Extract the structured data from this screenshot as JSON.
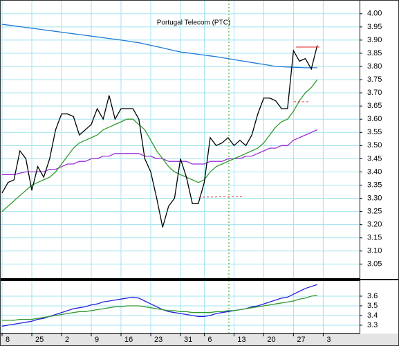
{
  "chart_data": [
    {
      "type": "line",
      "title": "Portugal Telecom (PTC)",
      "ylim": [
        2.997,
        4.052
      ],
      "yticks": [
        3.05,
        {
          "value": 3.1,
          "label": "3.10"
        },
        3.15,
        {
          "value": 3.2,
          "label": "3.20"
        },
        3.25,
        {
          "value": 3.3,
          "label": "3.30"
        },
        3.35,
        {
          "value": 3.4,
          "label": "3.40"
        },
        3.45,
        {
          "value": 3.5,
          "label": "3.50"
        },
        3.55,
        {
          "value": 3.6,
          "label": "3.60"
        },
        3.65,
        {
          "value": 3.7,
          "label": "3.70"
        },
        3.75,
        {
          "value": 3.8,
          "label": "3.80"
        },
        3.85,
        {
          "value": 3.9,
          "label": "3.90"
        },
        3.95,
        {
          "value": 4,
          "label": "4.00"
        }
      ],
      "grid": true,
      "series": [
        {
          "color": "#1c7ad8",
          "values": [
            3.96,
            3.957,
            3.954,
            3.951,
            3.948,
            3.945,
            3.942,
            3.939,
            3.936,
            3.933,
            3.93,
            3.927,
            3.924,
            3.921,
            3.918,
            3.915,
            3.912,
            3.909,
            3.906,
            3.903,
            3.9,
            3.897,
            3.893,
            3.89,
            3.885,
            3.88,
            3.875,
            3.87,
            3.865,
            3.86,
            3.855,
            3.852,
            3.849,
            3.846,
            3.843,
            3.84,
            3.837,
            3.833,
            3.83,
            3.826,
            3.822,
            3.819,
            3.815,
            3.811,
            3.808,
            3.804,
            3.8,
            3.799,
            3.798,
            3.797,
            3.796,
            3.795,
            3.795,
            3.795,
            null
          ]
        },
        {
          "color": "#9b2fd8",
          "values": [
            3.39,
            3.39,
            3.39,
            3.395,
            3.4,
            3.4,
            3.4,
            3.4,
            3.41,
            3.41,
            3.42,
            3.43,
            3.43,
            3.44,
            3.44,
            3.45,
            3.45,
            3.46,
            3.46,
            3.47,
            3.47,
            3.47,
            3.47,
            3.47,
            3.46,
            3.46,
            3.45,
            3.45,
            3.44,
            3.44,
            3.44,
            3.44,
            3.43,
            3.43,
            3.43,
            3.44,
            3.44,
            3.44,
            3.45,
            3.45,
            3.45,
            3.46,
            3.46,
            3.47,
            3.48,
            3.49,
            3.49,
            3.5,
            3.5,
            3.52,
            3.53,
            3.54,
            3.55,
            3.56,
            null
          ]
        },
        {
          "color": "#2e9a2e",
          "values": [
            3.25,
            3.27,
            3.29,
            3.31,
            3.33,
            3.35,
            3.36,
            3.37,
            3.38,
            3.4,
            3.43,
            3.46,
            3.49,
            3.51,
            3.52,
            3.53,
            3.54,
            3.56,
            3.57,
            3.58,
            3.59,
            3.6,
            3.6,
            3.58,
            3.56,
            3.52,
            3.48,
            3.45,
            3.42,
            3.4,
            3.39,
            3.38,
            3.37,
            3.36,
            3.37,
            3.4,
            3.42,
            3.43,
            3.44,
            3.45,
            3.46,
            3.47,
            3.48,
            3.49,
            3.51,
            3.54,
            3.57,
            3.59,
            3.6,
            3.63,
            3.67,
            3.7,
            3.72,
            3.75,
            null
          ]
        },
        {
          "color": "#000000",
          "values": [
            3.32,
            3.36,
            3.37,
            3.48,
            3.45,
            3.33,
            3.42,
            3.38,
            3.45,
            3.56,
            3.62,
            3.62,
            3.61,
            3.54,
            3.56,
            3.58,
            3.64,
            3.6,
            3.69,
            3.6,
            3.64,
            3.64,
            3.64,
            3.6,
            3.45,
            3.4,
            3.3,
            3.19,
            3.27,
            3.3,
            3.45,
            3.38,
            3.28,
            3.28,
            3.36,
            3.53,
            3.5,
            3.51,
            3.53,
            3.5,
            3.52,
            3.5,
            3.54,
            3.62,
            3.68,
            3.68,
            3.67,
            3.64,
            3.64,
            3.86,
            3.82,
            3.83,
            3.79,
            3.88,
            null
          ]
        }
      ]
    },
    {
      "type": "line",
      "categories": [
        "8",
        null,
        null,
        null,
        null,
        "25",
        null,
        null,
        null,
        null,
        "2",
        null,
        null,
        null,
        null,
        "9",
        null,
        null,
        null,
        null,
        "16",
        null,
        null,
        null,
        null,
        "23",
        null,
        null,
        null,
        null,
        "31",
        null,
        null,
        null,
        "6",
        null,
        null,
        null,
        null,
        "13",
        null,
        null,
        null,
        null,
        "20",
        null,
        null,
        null,
        null,
        "27",
        null,
        null,
        null,
        null,
        "3"
      ],
      "ylim": [
        3.221,
        3.764
      ],
      "yticks": [
        3.3,
        3.4,
        3.5,
        3.6
      ],
      "grid": true,
      "series": [
        {
          "color": "#2222dd",
          "values": [
            3.29,
            3.3,
            3.31,
            3.32,
            3.33,
            3.34,
            3.36,
            3.37,
            3.39,
            3.41,
            3.43,
            3.45,
            3.47,
            3.48,
            3.49,
            3.51,
            3.52,
            3.54,
            3.55,
            3.56,
            3.57,
            3.58,
            3.59,
            3.58,
            3.55,
            3.52,
            3.49,
            3.46,
            3.44,
            3.43,
            3.42,
            3.41,
            3.4,
            3.39,
            3.39,
            3.4,
            3.42,
            3.43,
            3.44,
            3.45,
            3.46,
            3.47,
            3.49,
            3.5,
            3.52,
            3.54,
            3.56,
            3.58,
            3.59,
            3.62,
            3.65,
            3.68,
            3.7,
            3.72,
            null
          ]
        },
        {
          "color": "#339933",
          "values": [
            3.35,
            3.35,
            3.35,
            3.36,
            3.36,
            3.36,
            3.37,
            3.38,
            3.39,
            3.4,
            3.41,
            3.42,
            3.43,
            3.44,
            3.44,
            3.45,
            3.46,
            3.47,
            3.48,
            3.49,
            3.49,
            3.5,
            3.5,
            3.5,
            3.49,
            3.48,
            3.47,
            3.46,
            3.45,
            3.45,
            3.44,
            3.44,
            3.43,
            3.43,
            3.43,
            3.43,
            3.44,
            3.44,
            3.45,
            3.45,
            3.46,
            3.47,
            3.48,
            3.49,
            3.5,
            3.51,
            3.52,
            3.53,
            3.54,
            3.55,
            3.57,
            3.58,
            3.6,
            3.61,
            null
          ]
        }
      ]
    }
  ]
}
